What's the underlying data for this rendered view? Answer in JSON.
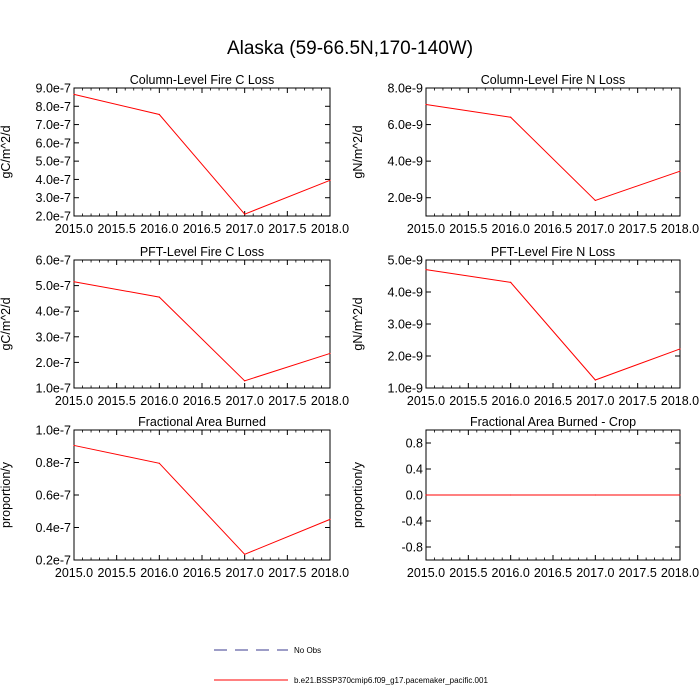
{
  "title": "Alaska (59-66.5N,170-140W)",
  "legend": {
    "placement": "bottom-center",
    "items": [
      {
        "label": "No Obs",
        "color": "#3b3b8f",
        "style": "dashed"
      },
      {
        "label": "b.e21.BSSP370cmip6.f09_g17.pacemaker_pacific.001",
        "color": "#ff0000",
        "style": "solid"
      }
    ]
  },
  "chart_data": [
    {
      "type": "line",
      "title": "Column-Level Fire C Loss",
      "ylabel": "gC/m^2/d",
      "x": [
        2015.0,
        2016.0,
        2017.0,
        2018.0
      ],
      "series": [
        {
          "name": "b.e21.BSSP370cmip6.f09_g17.pacemaker_pacific.001",
          "values": [
            8.65e-07,
            7.55e-07,
            2.1e-07,
            3.95e-07
          ]
        }
      ],
      "xlim": [
        2015.0,
        2018.0
      ],
      "ylim": [
        2e-07,
        9e-07
      ],
      "xticks": [
        "2015.0",
        "2015.5",
        "2016.0",
        "2016.5",
        "2017.0",
        "2017.5",
        "2018.0"
      ],
      "yticks": [
        {
          "v": 2e-07,
          "label": "2.0e-7"
        },
        {
          "v": 3e-07,
          "label": "3.0e-7"
        },
        {
          "v": 4e-07,
          "label": "4.0e-7"
        },
        {
          "v": 5e-07,
          "label": "5.0e-7"
        },
        {
          "v": 6e-07,
          "label": "6.0e-7"
        },
        {
          "v": 7e-07,
          "label": "7.0e-7"
        },
        {
          "v": 8e-07,
          "label": "8.0e-7"
        },
        {
          "v": 9e-07,
          "label": "9.0e-7"
        }
      ],
      "color": "#ff0000"
    },
    {
      "type": "line",
      "title": "Column-Level Fire N Loss",
      "ylabel": "gN/m^2/d",
      "x": [
        2015.0,
        2016.0,
        2017.0,
        2018.0
      ],
      "series": [
        {
          "name": "b.e21.BSSP370cmip6.f09_g17.pacemaker_pacific.001",
          "values": [
            7.1e-09,
            6.4e-09,
            1.85e-09,
            3.45e-09
          ]
        }
      ],
      "xlim": [
        2015.0,
        2018.0
      ],
      "ylim": [
        1e-09,
        8e-09
      ],
      "xticks": [
        "2015.0",
        "2015.5",
        "2016.0",
        "2016.5",
        "2017.0",
        "2017.5",
        "2018.0"
      ],
      "yticks": [
        {
          "v": 2e-09,
          "label": "2.0e-9"
        },
        {
          "v": 4e-09,
          "label": "4.0e-9"
        },
        {
          "v": 6e-09,
          "label": "6.0e-9"
        },
        {
          "v": 8e-09,
          "label": "8.0e-9"
        }
      ],
      "color": "#ff0000"
    },
    {
      "type": "line",
      "title": "PFT-Level Fire C Loss",
      "ylabel": "gC/m^2/d",
      "x": [
        2015.0,
        2016.0,
        2017.0,
        2018.0
      ],
      "series": [
        {
          "name": "b.e21.BSSP370cmip6.f09_g17.pacemaker_pacific.001",
          "values": [
            5.15e-07,
            4.55e-07,
            1.28e-07,
            2.35e-07
          ]
        }
      ],
      "xlim": [
        2015.0,
        2018.0
      ],
      "ylim": [
        1e-07,
        6e-07
      ],
      "xticks": [
        "2015.0",
        "2015.5",
        "2016.0",
        "2016.5",
        "2017.0",
        "2017.5",
        "2018.0"
      ],
      "yticks": [
        {
          "v": 1e-07,
          "label": "1.0e-7"
        },
        {
          "v": 2e-07,
          "label": "2.0e-7"
        },
        {
          "v": 3e-07,
          "label": "3.0e-7"
        },
        {
          "v": 4e-07,
          "label": "4.0e-7"
        },
        {
          "v": 5e-07,
          "label": "5.0e-7"
        },
        {
          "v": 6e-07,
          "label": "6.0e-7"
        }
      ],
      "color": "#ff0000"
    },
    {
      "type": "line",
      "title": "PFT-Level Fire N Loss",
      "ylabel": "gN/m^2/d",
      "x": [
        2015.0,
        2016.0,
        2017.0,
        2018.0
      ],
      "series": [
        {
          "name": "b.e21.BSSP370cmip6.f09_g17.pacemaker_pacific.001",
          "values": [
            4.7e-09,
            4.3e-09,
            1.25e-09,
            2.22e-09
          ]
        }
      ],
      "xlim": [
        2015.0,
        2018.0
      ],
      "ylim": [
        1e-09,
        5e-09
      ],
      "xticks": [
        "2015.0",
        "2015.5",
        "2016.0",
        "2016.5",
        "2017.0",
        "2017.5",
        "2018.0"
      ],
      "yticks": [
        {
          "v": 1e-09,
          "label": "1.0e-9"
        },
        {
          "v": 2e-09,
          "label": "2.0e-9"
        },
        {
          "v": 3e-09,
          "label": "3.0e-9"
        },
        {
          "v": 4e-09,
          "label": "4.0e-9"
        },
        {
          "v": 5e-09,
          "label": "5.0e-9"
        }
      ],
      "color": "#ff0000"
    },
    {
      "type": "line",
      "title": "Fractional Area Burned",
      "ylabel": "proportion/y",
      "x": [
        2015.0,
        2016.0,
        2017.0,
        2018.0
      ],
      "series": [
        {
          "name": "b.e21.BSSP370cmip6.f09_g17.pacemaker_pacific.001",
          "values": [
            9.05e-08,
            7.95e-08,
            2.35e-08,
            4.5e-08
          ]
        }
      ],
      "xlim": [
        2015.0,
        2018.0
      ],
      "ylim": [
        2e-08,
        1e-07
      ],
      "xticks": [
        "2015.0",
        "2015.5",
        "2016.0",
        "2016.5",
        "2017.0",
        "2017.5",
        "2018.0"
      ],
      "yticks": [
        {
          "v": 2e-08,
          "label": "0.2e-7"
        },
        {
          "v": 4e-08,
          "label": "0.4e-7"
        },
        {
          "v": 6e-08,
          "label": "0.6e-7"
        },
        {
          "v": 8e-08,
          "label": "0.8e-7"
        },
        {
          "v": 1e-07,
          "label": "1.0e-7"
        }
      ],
      "color": "#ff0000"
    },
    {
      "type": "line",
      "title": "Fractional Area Burned - Crop",
      "ylabel": "proportion/y",
      "x": [
        2015.0,
        2016.0,
        2017.0,
        2018.0
      ],
      "series": [
        {
          "name": "b.e21.BSSP370cmip6.f09_g17.pacemaker_pacific.001",
          "values": [
            0.0,
            0.0,
            0.0,
            0.0
          ]
        }
      ],
      "xlim": [
        2015.0,
        2018.0
      ],
      "ylim": [
        -1.0,
        1.0
      ],
      "xticks": [
        "2015.0",
        "2015.5",
        "2016.0",
        "2016.5",
        "2017.0",
        "2017.5",
        "2018.0"
      ],
      "yticks": [
        {
          "v": -0.8,
          "label": "-0.8"
        },
        {
          "v": -0.4,
          "label": "-0.4"
        },
        {
          "v": 0.0,
          "label": "0.0"
        },
        {
          "v": 0.4,
          "label": "0.4"
        },
        {
          "v": 0.8,
          "label": "0.8"
        }
      ],
      "color": "#ff0000"
    }
  ]
}
